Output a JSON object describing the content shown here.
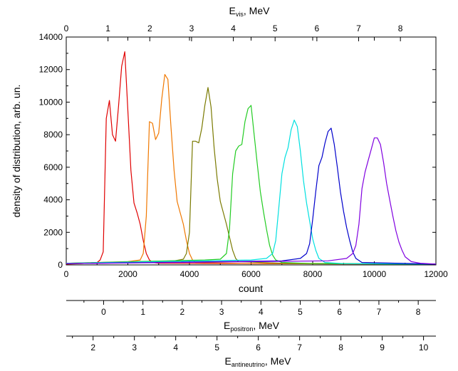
{
  "chart_data": {
    "type": "line",
    "title": "",
    "xlabel": "count",
    "ylabel": "density of distribution, arb. un.",
    "xlim": [
      0,
      12000
    ],
    "ylim": [
      0,
      14000
    ],
    "x_ticks": [
      "0",
      "2000",
      "4000",
      "6000",
      "8000",
      "10000",
      "12000"
    ],
    "y_ticks": [
      "0",
      "2000",
      "4000",
      "6000",
      "8000",
      "10000",
      "12000",
      "14000"
    ],
    "grid": false,
    "legend": "none",
    "secondary_axes": [
      {
        "position": "top",
        "label_main": "E",
        "label_sub": "vis",
        "label_unit": ", MeV",
        "xlim": [
          0,
          8.85
        ],
        "ticks": [
          0,
          1,
          2,
          3,
          4,
          5,
          6,
          7,
          8
        ]
      },
      {
        "position": "bottom-1",
        "label_main": "E",
        "label_sub": "positron",
        "label_unit": ", MeV",
        "xlim": [
          -0.95,
          8.45
        ],
        "ticks": [
          0,
          1,
          2,
          3,
          4,
          5,
          6,
          7,
          8
        ]
      },
      {
        "position": "bottom-2",
        "label_main": "E",
        "label_sub": "antineutrino",
        "label_unit": ", MeV",
        "xlim": [
          1.35,
          10.3
        ],
        "ticks": [
          2,
          3,
          4,
          5,
          6,
          7,
          8,
          9,
          10
        ]
      }
    ],
    "series": [
      {
        "color": "#e00000",
        "x": [
          0,
          500,
          1000,
          1100,
          1200,
          1300,
          1400,
          1500,
          1600,
          1700,
          1800,
          1900,
          2000,
          2100,
          2200,
          2300,
          2400,
          2500,
          2600,
          2700,
          2800,
          3000,
          6000,
          12000
        ],
        "y": [
          50,
          80,
          150,
          300,
          800,
          9000,
          10100,
          8000,
          7600,
          9800,
          12200,
          13100,
          9500,
          5800,
          3800,
          3200,
          2500,
          1500,
          700,
          300,
          150,
          100,
          80,
          50
        ]
      },
      {
        "color": "#f07800",
        "x": [
          0,
          2000,
          2400,
          2500,
          2600,
          2700,
          2800,
          2900,
          3000,
          3100,
          3200,
          3300,
          3400,
          3500,
          3600,
          3700,
          3800,
          3900,
          4000,
          4100,
          4200,
          6000,
          12000
        ],
        "y": [
          100,
          200,
          300,
          700,
          3000,
          8800,
          8700,
          7700,
          8100,
          10200,
          11700,
          11400,
          8500,
          5800,
          3900,
          3200,
          2500,
          1500,
          700,
          300,
          150,
          80,
          50
        ]
      },
      {
        "color": "#7a7a00",
        "x": [
          0,
          3500,
          3800,
          3900,
          4000,
          4100,
          4200,
          4300,
          4400,
          4500,
          4600,
          4700,
          4800,
          4900,
          5000,
          5100,
          5200,
          5300,
          5400,
          5500,
          5600,
          7000,
          12000
        ],
        "y": [
          100,
          250,
          350,
          700,
          2000,
          7600,
          7600,
          7500,
          8400,
          9800,
          10900,
          9700,
          7200,
          5300,
          3900,
          3200,
          2500,
          1700,
          900,
          400,
          200,
          100,
          50
        ]
      },
      {
        "color": "#22cc22",
        "x": [
          0,
          4500,
          5000,
          5200,
          5300,
          5400,
          5500,
          5600,
          5700,
          5800,
          5900,
          6000,
          6100,
          6200,
          6300,
          6400,
          6500,
          6600,
          6700,
          6800,
          7000,
          8000,
          12000
        ],
        "y": [
          100,
          300,
          350,
          700,
          2200,
          5600,
          7000,
          7300,
          7400,
          8800,
          9600,
          9800,
          8000,
          6200,
          4500,
          3300,
          2200,
          1200,
          600,
          300,
          150,
          80,
          50
        ]
      },
      {
        "color": "#00e0e0",
        "x": [
          0,
          6000,
          6500,
          6700,
          6800,
          6900,
          7000,
          7100,
          7200,
          7300,
          7400,
          7500,
          7600,
          7700,
          7800,
          7900,
          8000,
          8100,
          8200,
          8400,
          9000,
          12000
        ],
        "y": [
          100,
          300,
          400,
          700,
          1500,
          3500,
          5600,
          6600,
          7200,
          8300,
          8900,
          8500,
          7000,
          5200,
          3800,
          2700,
          1600,
          900,
          400,
          150,
          80,
          50
        ]
      },
      {
        "color": "#0000cc",
        "x": [
          0,
          7000,
          7600,
          7800,
          7900,
          8000,
          8100,
          8200,
          8300,
          8400,
          8500,
          8600,
          8700,
          8800,
          8900,
          9000,
          9100,
          9200,
          9300,
          9400,
          9600,
          12000
        ],
        "y": [
          80,
          250,
          400,
          700,
          1300,
          2800,
          4500,
          6100,
          6600,
          7500,
          8200,
          8400,
          7400,
          6000,
          4500,
          3300,
          2300,
          1500,
          800,
          400,
          150,
          50
        ]
      },
      {
        "color": "#8000e0",
        "x": [
          0,
          8500,
          9100,
          9300,
          9400,
          9500,
          9600,
          9700,
          9800,
          9900,
          10000,
          10100,
          10200,
          10300,
          10400,
          10500,
          10600,
          10700,
          10800,
          10900,
          11000,
          11200,
          11500,
          12000
        ],
        "y": [
          80,
          250,
          400,
          700,
          1200,
          2500,
          4700,
          5700,
          6400,
          7100,
          7800,
          7800,
          7400,
          6300,
          5000,
          4000,
          3000,
          2100,
          1400,
          900,
          500,
          200,
          100,
          50
        ]
      }
    ]
  }
}
